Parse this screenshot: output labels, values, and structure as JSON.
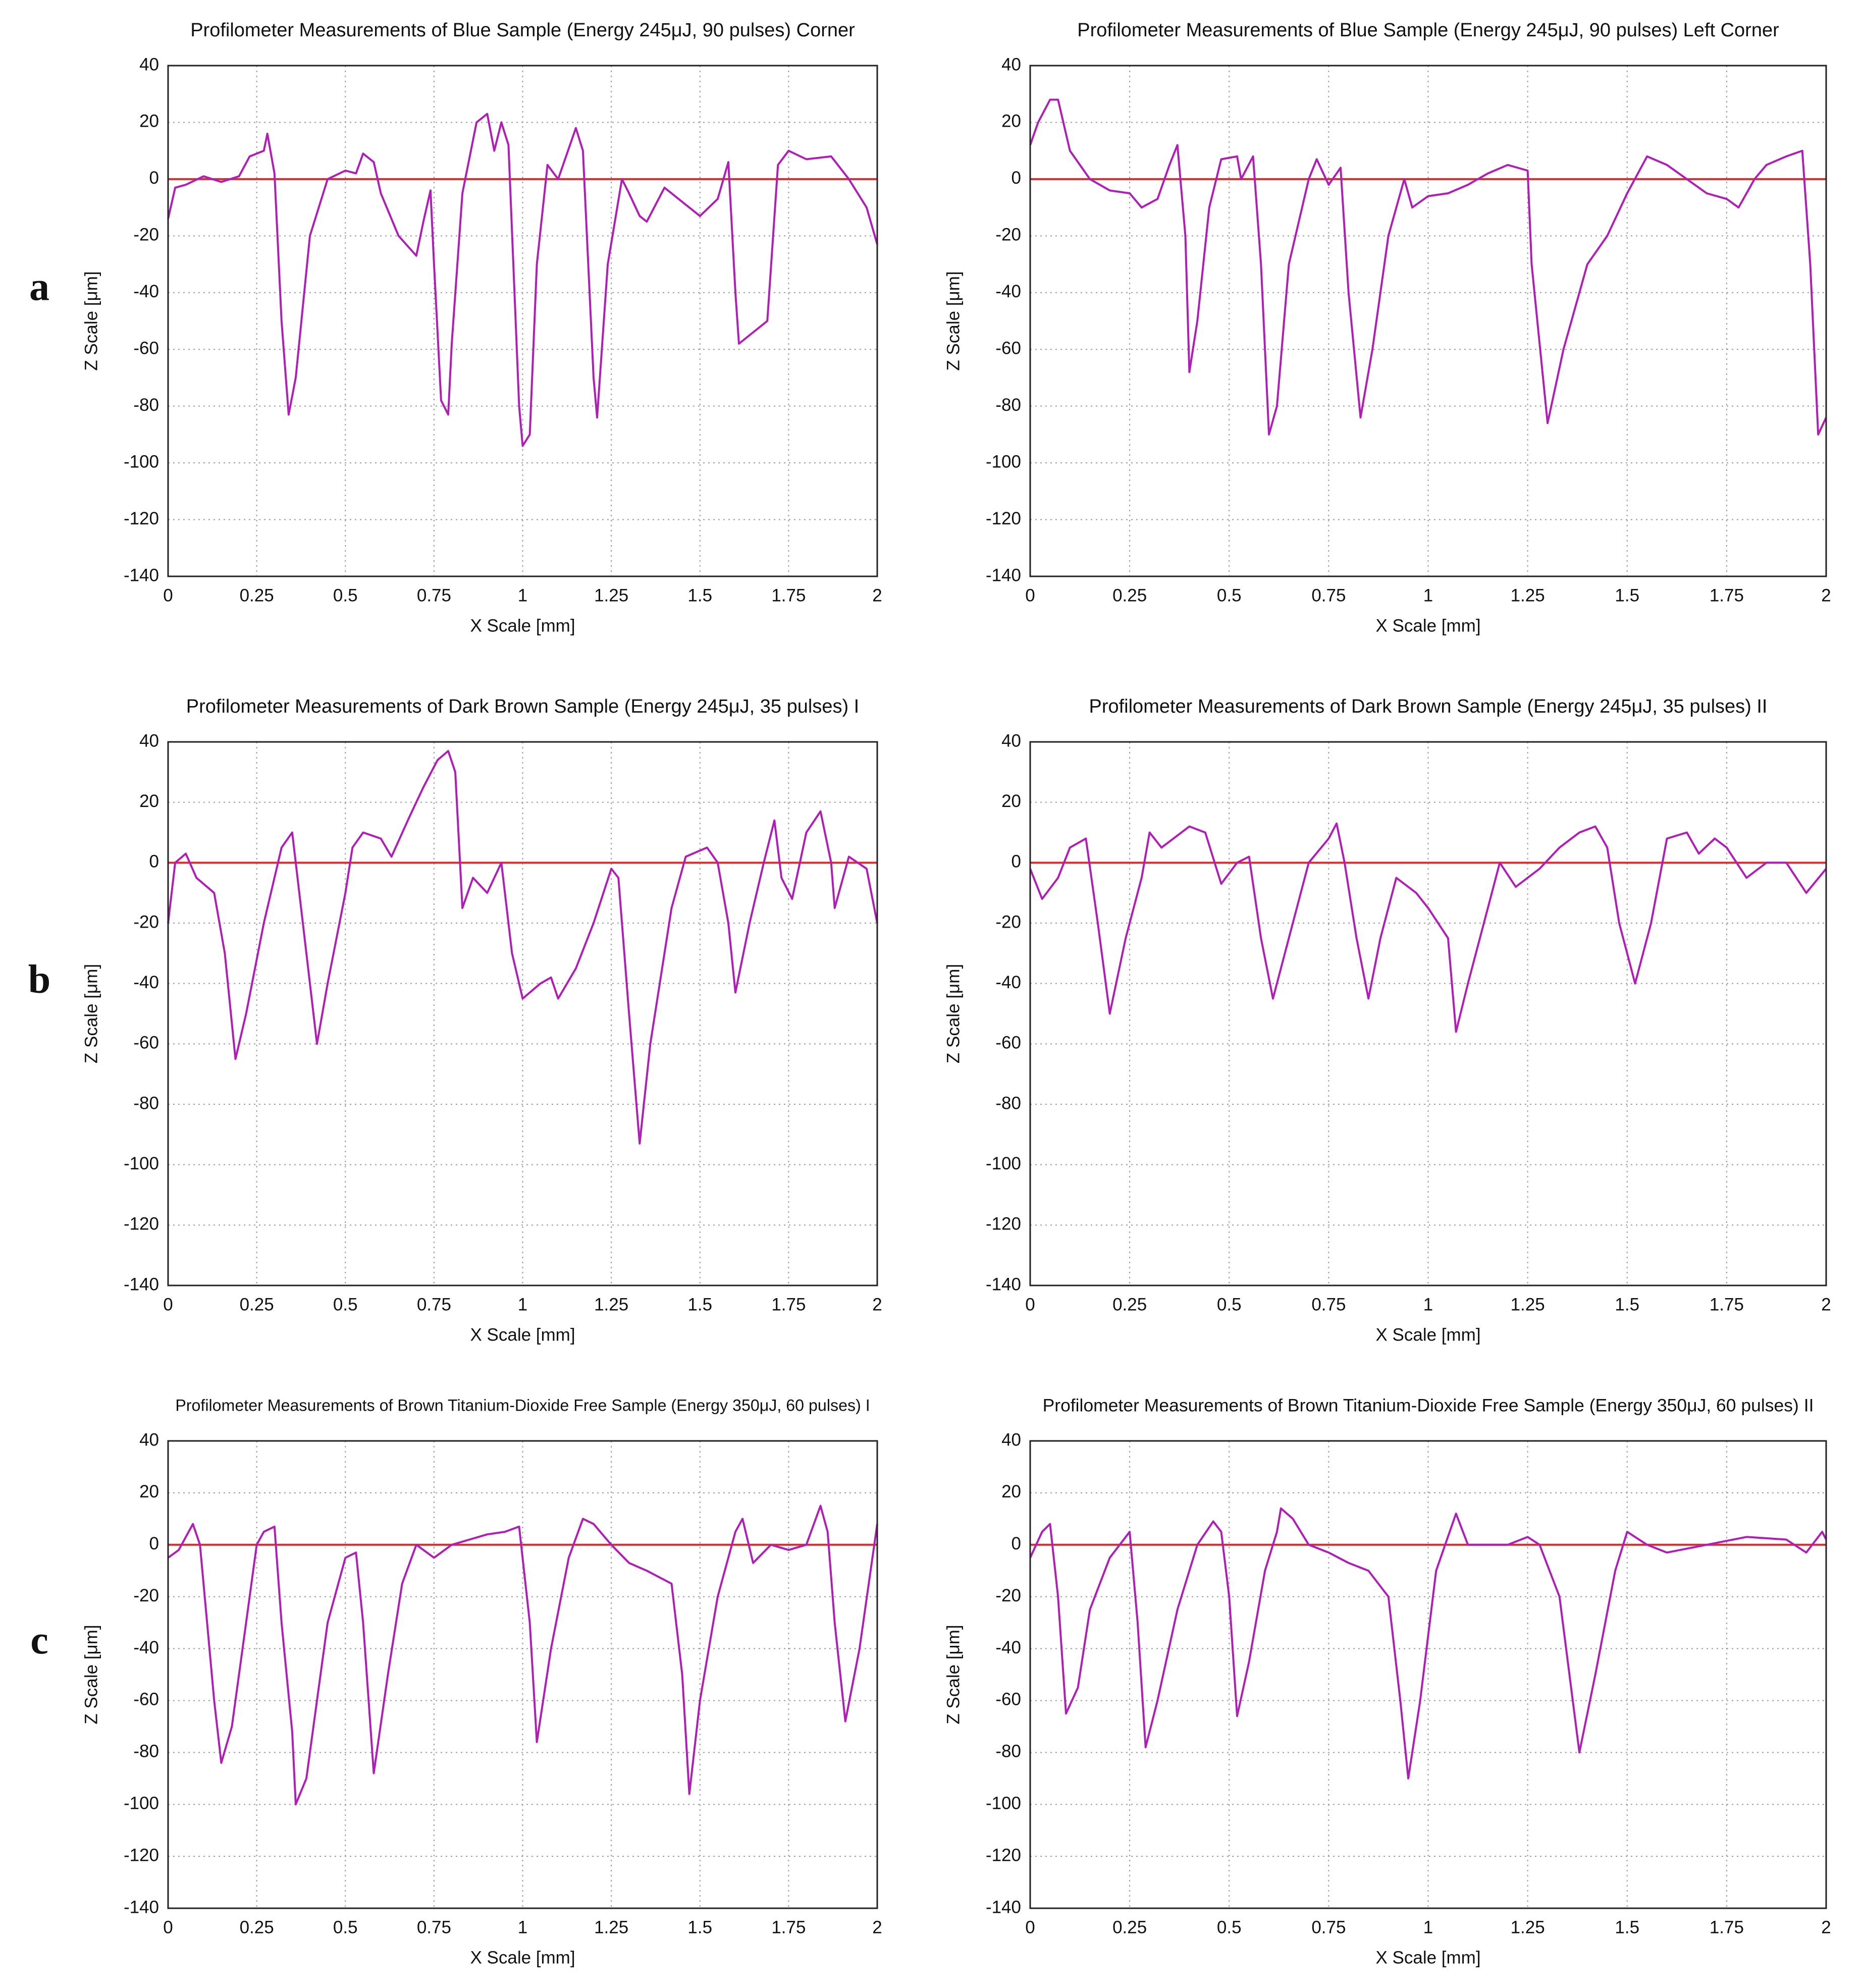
{
  "chart_data": [
    {
      "type": "line",
      "label": "a",
      "title": "Profilometer Measurements of Blue Sample (Energy 245μJ, 90 pulses) Corner",
      "xlabel": "X Scale [mm]",
      "ylabel": "Z Scale [μm]",
      "x": [
        0,
        0.02,
        0.05,
        0.1,
        0.15,
        0.2,
        0.23,
        0.27,
        0.28,
        0.3,
        0.32,
        0.34,
        0.36,
        0.4,
        0.45,
        0.5,
        0.53,
        0.55,
        0.58,
        0.6,
        0.65,
        0.7,
        0.72,
        0.74,
        0.75,
        0.77,
        0.79,
        0.8,
        0.83,
        0.87,
        0.9,
        0.92,
        0.94,
        0.96,
        0.99,
        1.0,
        1.02,
        1.04,
        1.07,
        1.1,
        1.15,
        1.17,
        1.2,
        1.21,
        1.24,
        1.28,
        1.3,
        1.33,
        1.35,
        1.4,
        1.45,
        1.5,
        1.55,
        1.58,
        1.6,
        1.61,
        1.69,
        1.72,
        1.75,
        1.8,
        1.87,
        1.92,
        1.97,
        2.0
      ],
      "values": [
        -14,
        -3,
        -2,
        1,
        -1,
        1,
        8,
        10,
        16,
        2,
        -50,
        -83,
        -70,
        -20,
        0,
        3,
        2,
        9,
        6,
        -5,
        -20,
        -27,
        -15,
        -4,
        -30,
        -78,
        -83,
        -58,
        -5,
        20,
        23,
        10,
        20,
        12,
        -80,
        -94,
        -90,
        -30,
        5,
        0,
        18,
        10,
        -70,
        -84,
        -30,
        0,
        -5,
        -13,
        -15,
        -3,
        -8,
        -13,
        -7,
        6,
        -40,
        -58,
        -50,
        5,
        10,
        7,
        8,
        0,
        -10,
        -23
      ],
      "color": "#b01fb5",
      "hline": 0,
      "hline_color": "#e02a2a",
      "grid": true,
      "xlim": [
        0,
        2
      ],
      "xticks": [
        0,
        0.25,
        0.5,
        0.75,
        1,
        1.25,
        1.5,
        1.75,
        2
      ],
      "ylim": [
        -140,
        40
      ],
      "yticks": [
        -140,
        -120,
        -100,
        -80,
        -60,
        -40,
        -20,
        0,
        20,
        40
      ]
    },
    {
      "type": "line",
      "title": "Profilometer Measurements of Blue Sample (Energy 245μJ, 90 pulses) Left Corner",
      "xlabel": "X Scale [mm]",
      "ylabel": "Z Scale [μm]",
      "x": [
        0,
        0.02,
        0.05,
        0.07,
        0.1,
        0.15,
        0.2,
        0.25,
        0.28,
        0.32,
        0.35,
        0.37,
        0.39,
        0.4,
        0.42,
        0.45,
        0.48,
        0.52,
        0.53,
        0.56,
        0.58,
        0.6,
        0.62,
        0.65,
        0.7,
        0.72,
        0.75,
        0.78,
        0.8,
        0.83,
        0.86,
        0.9,
        0.94,
        0.96,
        1.0,
        1.05,
        1.1,
        1.15,
        1.2,
        1.25,
        1.26,
        1.3,
        1.34,
        1.4,
        1.45,
        1.5,
        1.55,
        1.6,
        1.65,
        1.7,
        1.75,
        1.78,
        1.82,
        1.85,
        1.9,
        1.94,
        1.96,
        1.98,
        2.0
      ],
      "values": [
        12,
        20,
        28,
        28,
        10,
        0,
        -4,
        -5,
        -10,
        -7,
        5,
        12,
        -20,
        -68,
        -50,
        -10,
        7,
        8,
        0,
        8,
        -30,
        -90,
        -80,
        -30,
        0,
        7,
        -2,
        4,
        -40,
        -84,
        -60,
        -20,
        0,
        -10,
        -6,
        -5,
        -2,
        2,
        5,
        3,
        -30,
        -86,
        -60,
        -30,
        -20,
        -5,
        8,
        5,
        0,
        -5,
        -7,
        -10,
        0,
        5,
        8,
        10,
        -30,
        -90,
        -84
      ],
      "color": "#b01fb5",
      "hline": 0,
      "hline_color": "#e02a2a",
      "grid": true,
      "xlim": [
        0,
        2
      ],
      "xticks": [
        0,
        0.25,
        0.5,
        0.75,
        1,
        1.25,
        1.5,
        1.75,
        2
      ],
      "ylim": [
        -140,
        40
      ],
      "yticks": [
        -140,
        -120,
        -100,
        -80,
        -60,
        -40,
        -20,
        0,
        20,
        40
      ]
    },
    {
      "type": "line",
      "label": "b",
      "title": "Profilometer Measurements of Dark Brown Sample (Energy 245μJ, 35 pulses) I",
      "xlabel": "X Scale [mm]",
      "ylabel": "Z Scale [μm]",
      "x": [
        0,
        0.02,
        0.05,
        0.08,
        0.13,
        0.16,
        0.19,
        0.22,
        0.27,
        0.32,
        0.35,
        0.38,
        0.42,
        0.45,
        0.5,
        0.52,
        0.55,
        0.6,
        0.63,
        0.68,
        0.72,
        0.76,
        0.79,
        0.81,
        0.83,
        0.86,
        0.9,
        0.94,
        0.97,
        1.0,
        1.05,
        1.08,
        1.1,
        1.15,
        1.2,
        1.25,
        1.27,
        1.3,
        1.33,
        1.36,
        1.42,
        1.46,
        1.52,
        1.55,
        1.58,
        1.6,
        1.64,
        1.68,
        1.71,
        1.73,
        1.76,
        1.8,
        1.84,
        1.87,
        1.88,
        1.92,
        1.97,
        2.0
      ],
      "values": [
        -20,
        0,
        3,
        -5,
        -10,
        -30,
        -65,
        -50,
        -20,
        5,
        10,
        -20,
        -60,
        -40,
        -10,
        5,
        10,
        8,
        2,
        15,
        25,
        34,
        37,
        30,
        -15,
        -5,
        -10,
        0,
        -30,
        -45,
        -40,
        -38,
        -45,
        -35,
        -20,
        -2,
        -5,
        -50,
        -93,
        -60,
        -15,
        2,
        5,
        0,
        -20,
        -43,
        -20,
        0,
        14,
        -5,
        -12,
        10,
        17,
        0,
        -15,
        2,
        -2,
        -20
      ],
      "color": "#b01fb5",
      "hline": 0,
      "hline_color": "#e02a2a",
      "grid": true,
      "xlim": [
        0,
        2
      ],
      "xticks": [
        0,
        0.25,
        0.5,
        0.75,
        1,
        1.25,
        1.5,
        1.75,
        2
      ],
      "ylim": [
        -140,
        40
      ],
      "yticks": [
        -140,
        -120,
        -100,
        -80,
        -60,
        -40,
        -20,
        0,
        20,
        40
      ]
    },
    {
      "type": "line",
      "title": "Profilometer Measurements of Dark Brown Sample (Energy 245μJ, 35 pulses) II",
      "xlabel": "X Scale [mm]",
      "ylabel": "Z Scale [μm]",
      "x": [
        0,
        0.03,
        0.07,
        0.1,
        0.14,
        0.17,
        0.2,
        0.24,
        0.28,
        0.3,
        0.33,
        0.4,
        0.44,
        0.48,
        0.52,
        0.55,
        0.58,
        0.61,
        0.65,
        0.7,
        0.75,
        0.77,
        0.79,
        0.82,
        0.85,
        0.88,
        0.92,
        0.97,
        1.0,
        1.05,
        1.07,
        1.1,
        1.15,
        1.18,
        1.22,
        1.28,
        1.33,
        1.38,
        1.42,
        1.45,
        1.48,
        1.52,
        1.56,
        1.6,
        1.65,
        1.68,
        1.72,
        1.75,
        1.8,
        1.85,
        1.9,
        1.95,
        2.0
      ],
      "values": [
        -2,
        -12,
        -5,
        5,
        8,
        -20,
        -50,
        -25,
        -5,
        10,
        5,
        12,
        10,
        -7,
        0,
        2,
        -25,
        -45,
        -25,
        0,
        8,
        13,
        0,
        -25,
        -45,
        -25,
        -5,
        -10,
        -15,
        -25,
        -56,
        -40,
        -15,
        0,
        -8,
        -2,
        5,
        10,
        12,
        5,
        -20,
        -40,
        -20,
        8,
        10,
        3,
        8,
        5,
        -5,
        0,
        0,
        -10,
        -2
      ],
      "color": "#b01fb5",
      "hline": 0,
      "hline_color": "#e02a2a",
      "grid": true,
      "xlim": [
        0,
        2
      ],
      "xticks": [
        0,
        0.25,
        0.5,
        0.75,
        1,
        1.25,
        1.5,
        1.75,
        2
      ],
      "ylim": [
        -140,
        40
      ],
      "yticks": [
        -140,
        -120,
        -100,
        -80,
        -60,
        -40,
        -20,
        0,
        20,
        40
      ]
    },
    {
      "type": "line",
      "label": "c",
      "title": "Profilometer Measurements of Brown Titanium-Dioxide Free Sample (Energy 350μJ, 60 pulses) I",
      "xlabel": "X Scale [mm]",
      "ylabel": "Z Scale [μm]",
      "x": [
        0,
        0.03,
        0.07,
        0.09,
        0.11,
        0.13,
        0.15,
        0.18,
        0.22,
        0.25,
        0.27,
        0.3,
        0.32,
        0.35,
        0.36,
        0.39,
        0.42,
        0.45,
        0.5,
        0.53,
        0.55,
        0.58,
        0.62,
        0.66,
        0.7,
        0.75,
        0.8,
        0.85,
        0.9,
        0.95,
        0.99,
        1.02,
        1.04,
        1.08,
        1.13,
        1.17,
        1.2,
        1.25,
        1.3,
        1.35,
        1.42,
        1.45,
        1.47,
        1.5,
        1.55,
        1.6,
        1.62,
        1.65,
        1.7,
        1.75,
        1.8,
        1.84,
        1.86,
        1.88,
        1.91,
        1.95,
        2.0
      ],
      "values": [
        -5,
        -2,
        8,
        0,
        -30,
        -60,
        -84,
        -70,
        -30,
        0,
        5,
        7,
        -30,
        -72,
        -100,
        -90,
        -60,
        -30,
        -5,
        -3,
        -30,
        -88,
        -50,
        -15,
        0,
        -5,
        0,
        2,
        4,
        5,
        7,
        -30,
        -76,
        -40,
        -5,
        10,
        8,
        0,
        -7,
        -10,
        -15,
        -50,
        -96,
        -60,
        -20,
        5,
        10,
        -7,
        0,
        -2,
        0,
        15,
        5,
        -30,
        -68,
        -40,
        8
      ],
      "color": "#b01fb5",
      "hline": 0,
      "hline_color": "#e02a2a",
      "grid": true,
      "xlim": [
        0,
        2
      ],
      "xticks": [
        0,
        0.25,
        0.5,
        0.75,
        1,
        1.25,
        1.5,
        1.75,
        2
      ],
      "ylim": [
        -140,
        40
      ],
      "yticks": [
        -140,
        -120,
        -100,
        -80,
        -60,
        -40,
        -20,
        0,
        20,
        40
      ]
    },
    {
      "type": "line",
      "title": "Profilometer Measurements of Brown Titanium-Dioxide Free Sample (Energy 350μJ, 60 pulses) II",
      "xlabel": "X Scale [mm]",
      "ylabel": "Z Scale [μm]",
      "x": [
        0,
        0.03,
        0.05,
        0.07,
        0.09,
        0.12,
        0.15,
        0.2,
        0.25,
        0.27,
        0.29,
        0.32,
        0.37,
        0.42,
        0.46,
        0.48,
        0.5,
        0.52,
        0.55,
        0.59,
        0.62,
        0.63,
        0.66,
        0.7,
        0.75,
        0.8,
        0.85,
        0.9,
        0.93,
        0.95,
        0.98,
        1.02,
        1.07,
        1.1,
        1.2,
        1.25,
        1.28,
        1.33,
        1.38,
        1.42,
        1.47,
        1.5,
        1.55,
        1.6,
        1.7,
        1.8,
        1.9,
        1.95,
        1.99,
        2.0
      ],
      "values": [
        -5,
        5,
        8,
        -20,
        -65,
        -55,
        -25,
        -5,
        5,
        -30,
        -78,
        -60,
        -25,
        0,
        9,
        5,
        -20,
        -66,
        -45,
        -10,
        5,
        14,
        10,
        0,
        -3,
        -7,
        -10,
        -20,
        -60,
        -90,
        -60,
        -10,
        12,
        0,
        0,
        3,
        0,
        -20,
        -80,
        -50,
        -10,
        5,
        0,
        -3,
        0,
        3,
        2,
        -3,
        5,
        2
      ],
      "color": "#b01fb5",
      "hline": 0,
      "hline_color": "#e02a2a",
      "grid": true,
      "xlim": [
        0,
        2
      ],
      "xticks": [
        0,
        0.25,
        0.5,
        0.75,
        1,
        1.25,
        1.5,
        1.75,
        2
      ],
      "ylim": [
        -140,
        40
      ],
      "yticks": [
        -140,
        -120,
        -100,
        -80,
        -60,
        -40,
        -20,
        0,
        20,
        40
      ]
    }
  ]
}
